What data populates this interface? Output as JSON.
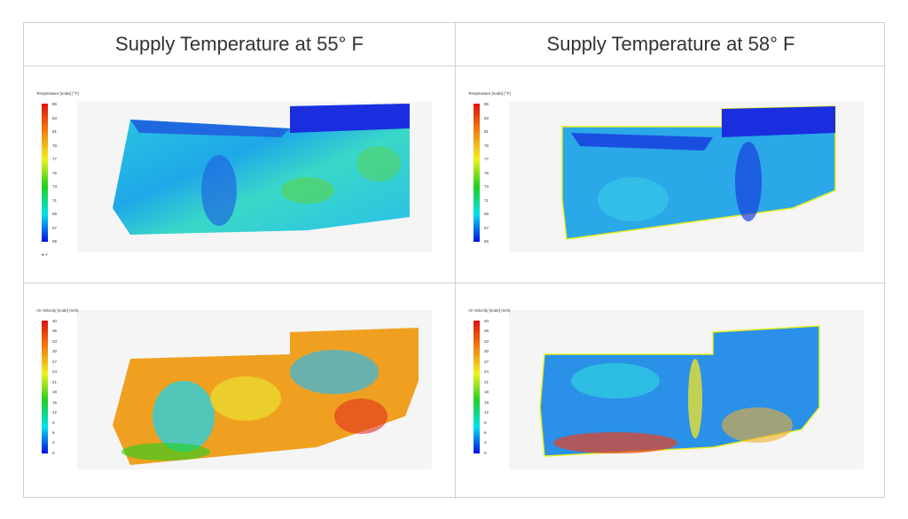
{
  "headers": [
    "Supply Temperature at 55° F",
    "Supply Temperature at 58° F"
  ],
  "temperature_legend": {
    "title": "Temperature [node] (°F)",
    "ticks": [
      "85",
      "83",
      "81",
      "79",
      "77",
      "75",
      "73",
      "71",
      "69",
      "67",
      "65"
    ]
  },
  "velocity_legend": {
    "title": "Air Velocity [node] (m/s)",
    "ticks": [
      "40",
      "36",
      "33",
      "30",
      "27",
      "24",
      "21",
      "18",
      "15",
      "12",
      "9",
      "6",
      "3",
      "0"
    ]
  },
  "axis_marker": "Y",
  "colors": {
    "border": "#d0d0d0",
    "cold": "#1a2ee0",
    "cyan": "#1fd8e8",
    "green": "#5ad24a",
    "yellow": "#f0e030",
    "red": "#e02020"
  }
}
